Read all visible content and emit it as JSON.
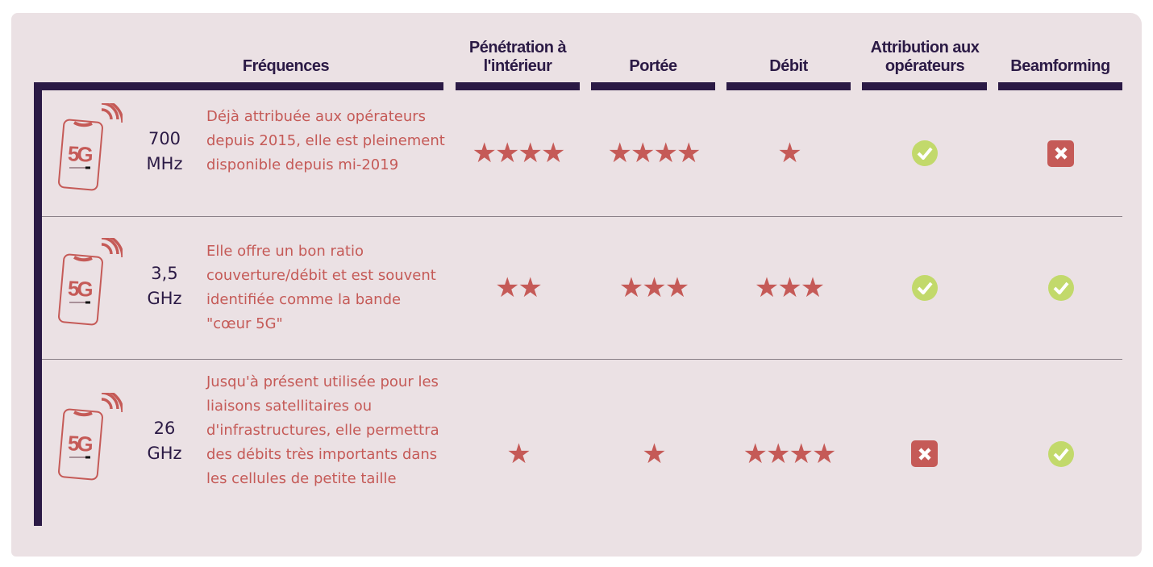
{
  "headers": {
    "frequences": "Fréquences",
    "penetration": "Pénétration à l'intérieur",
    "portee": "Portée",
    "debit": "Débit",
    "attribution": "Attribution aux opérateurs",
    "beamforming": "Beamforming"
  },
  "icon_label": "5G",
  "colors": {
    "background": "#ebe1e4",
    "dark": "#2b1a45",
    "accent": "#c55a57",
    "check": "#c2d96b"
  },
  "rows": [
    {
      "freq_value": "700",
      "freq_unit": "MHz",
      "description": "Déjà attribuée aux opérateurs depuis 2015, elle est pleinement disponible depuis mi-2019",
      "penetration": 4,
      "portee": 4,
      "debit": 1,
      "attribution": true,
      "beamforming": false
    },
    {
      "freq_value": "3,5",
      "freq_unit": "GHz",
      "description": "Elle offre un bon ratio couverture/débit et est souvent identifiée comme la bande \"cœur 5G\"",
      "penetration": 2,
      "portee": 3,
      "debit": 3,
      "attribution": true,
      "beamforming": true
    },
    {
      "freq_value": "26",
      "freq_unit": "GHz",
      "description": "Jusqu'à présent utilisée pour les liaisons satellitaires ou d'infrastructures, elle permettra des débits très importants dans les cellules de petite taille",
      "penetration": 1,
      "portee": 1,
      "debit": 4,
      "attribution": false,
      "beamforming": true
    }
  ]
}
